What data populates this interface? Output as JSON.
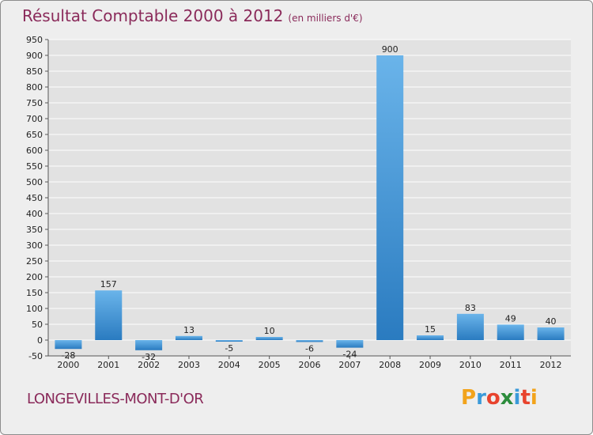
{
  "title": {
    "main": "Résultat Comptable 2000 à 2012",
    "sub": "(en milliers d'€)"
  },
  "town": "LONGEVILLES-MONT-D'OR",
  "logo": {
    "letters": [
      "P",
      "r",
      "o",
      "x",
      "i",
      "t",
      "i"
    ],
    "colors": [
      "#f2a31b",
      "#3a9ad9",
      "#e8432d",
      "#2c8c3c",
      "#3a9ad9",
      "#e8432d",
      "#f2a31b"
    ]
  },
  "colors": {
    "title": "#8a2a5a",
    "bar_top": "#6ab4ea",
    "bar_bottom": "#2a7bc0",
    "grid": "#ffffff",
    "plot_bg": "#e2e2e2"
  },
  "chart_data": {
    "type": "bar",
    "title": "Résultat Comptable 2000 à 2012",
    "subtitle": "(en milliers d'€)",
    "xlabel": "",
    "ylabel": "",
    "categories": [
      "2000",
      "2001",
      "2002",
      "2003",
      "2004",
      "2005",
      "2006",
      "2007",
      "2008",
      "2009",
      "2010",
      "2011",
      "2012"
    ],
    "values": [
      -28,
      157,
      -32,
      13,
      -5,
      10,
      -6,
      -24,
      900,
      15,
      83,
      49,
      40
    ],
    "ylim": [
      -50,
      950
    ],
    "yticks": [
      -50,
      0,
      50,
      100,
      150,
      200,
      250,
      300,
      350,
      400,
      450,
      500,
      550,
      600,
      650,
      700,
      750,
      800,
      850,
      900,
      950
    ],
    "grid": true
  }
}
